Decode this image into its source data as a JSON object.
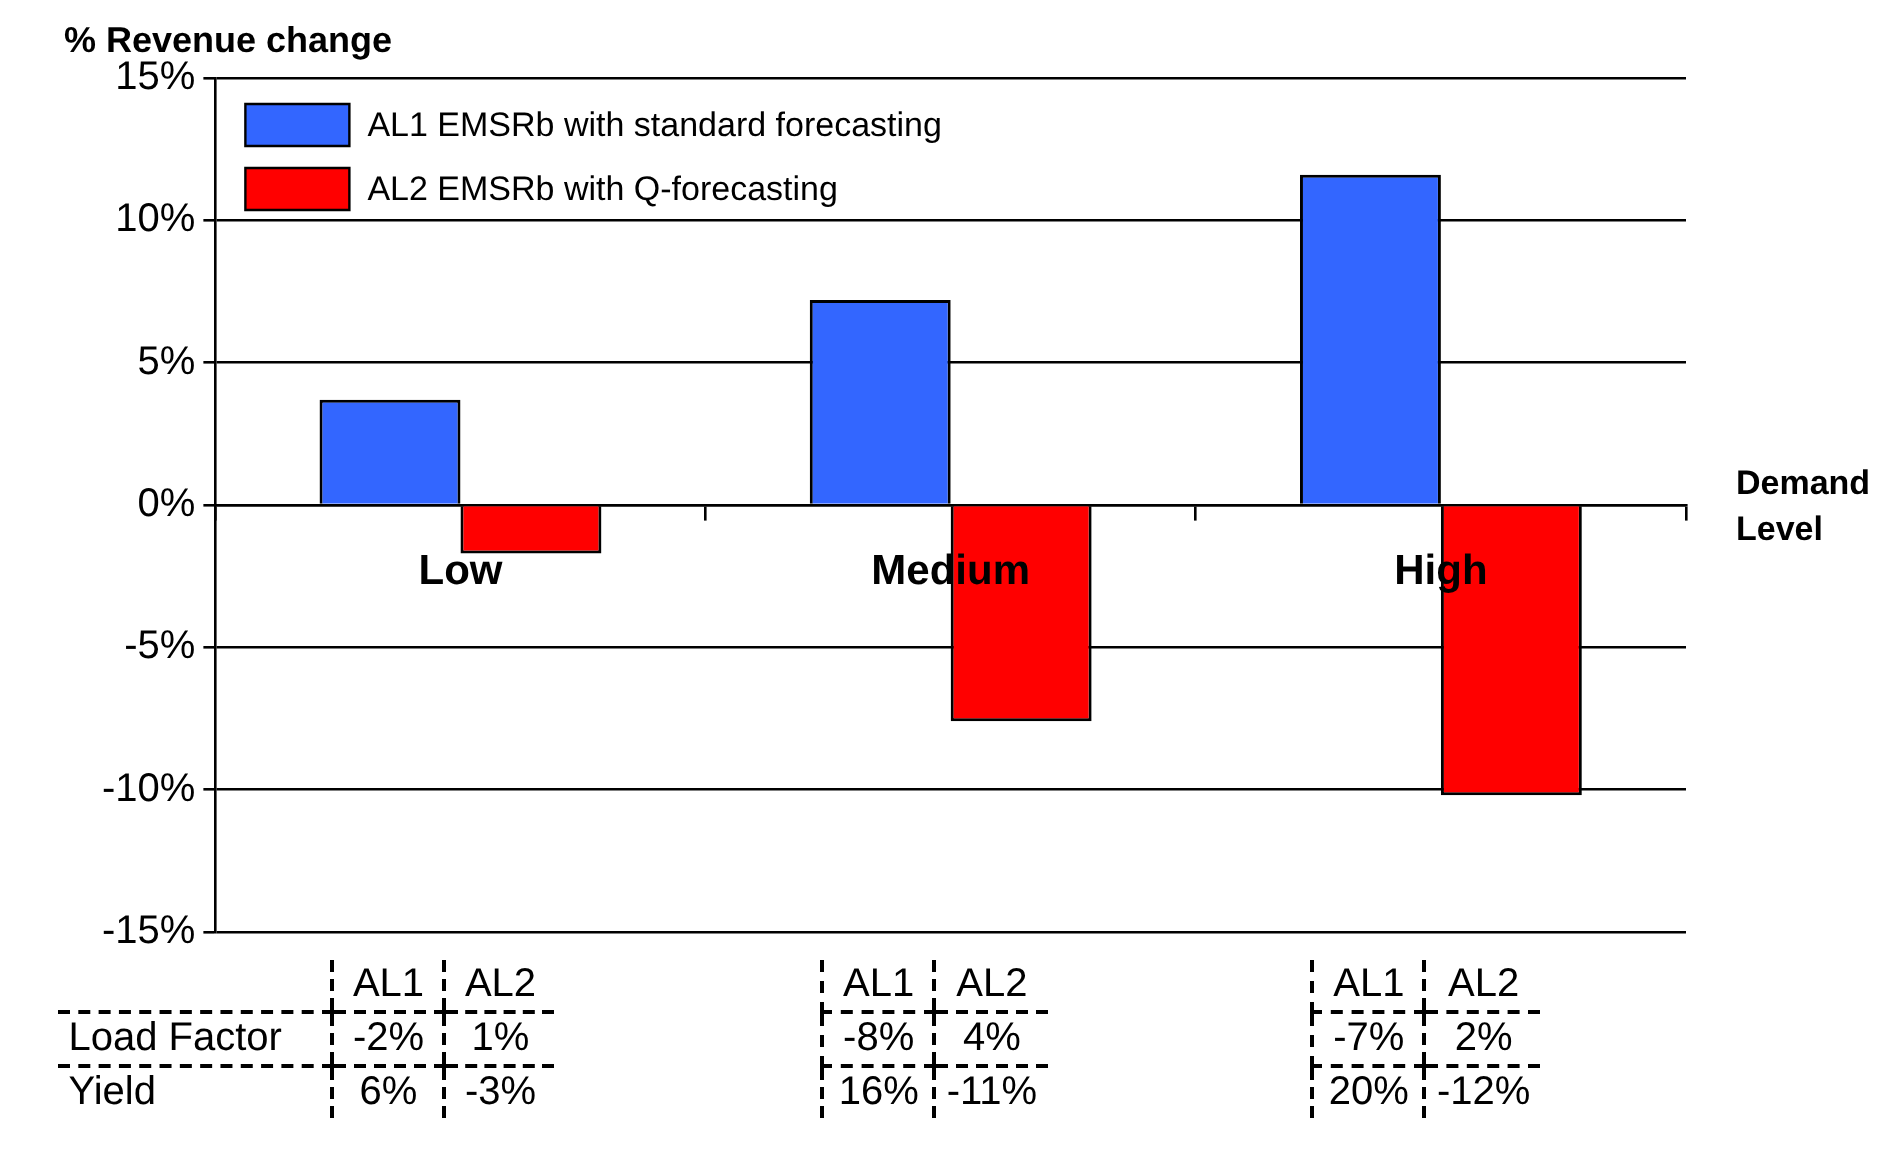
{
  "chart_data": {
    "type": "bar",
    "ylabel": "% Revenue change",
    "xlabel": "Demand Level",
    "categories": [
      "Low",
      "Medium",
      "High"
    ],
    "series": [
      {
        "name": "AL1 EMSRb with standard forecasting",
        "color": "#3366ff",
        "values": [
          3.7,
          7.2,
          11.6
        ]
      },
      {
        "name": "AL2 EMSRb with Q-forecasting",
        "color": "#ff0000",
        "values": [
          -1.7,
          -7.6,
          -10.2
        ]
      }
    ],
    "ylim": [
      -15,
      15
    ],
    "yticks": [
      {
        "value": -15,
        "label": "-15%"
      },
      {
        "value": -10,
        "label": "-10%"
      },
      {
        "value": -5,
        "label": "-5%"
      },
      {
        "value": 0,
        "label": "0%"
      },
      {
        "value": 5,
        "label": "5%"
      },
      {
        "value": 10,
        "label": "10%"
      },
      {
        "value": 15,
        "label": "15%"
      }
    ],
    "grid": "y",
    "legend": "top left",
    "annotations": [
      "Load Factor",
      "Yield",
      "AL1",
      "AL2",
      "-2%",
      "1%",
      "6%",
      "-3%",
      "AL1",
      "AL2",
      "-8%",
      "4%",
      "16%",
      "-11%",
      "AL1",
      "AL2",
      "-7%",
      "2%",
      "20%",
      "-12%"
    ]
  }
}
